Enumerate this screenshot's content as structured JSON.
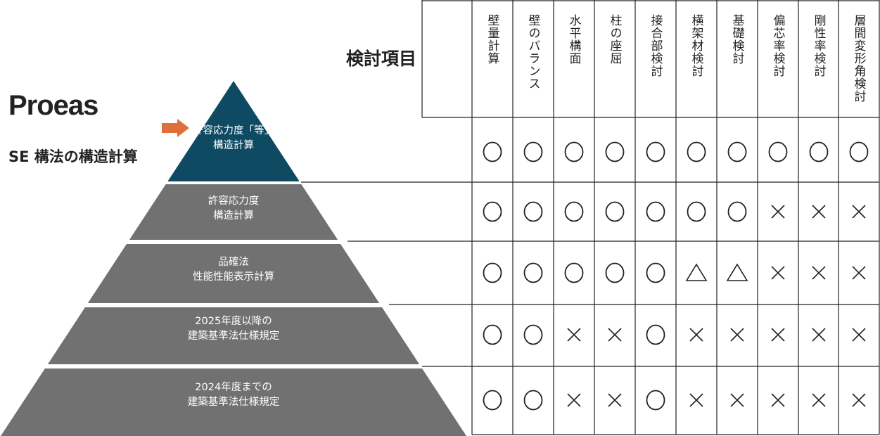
{
  "brand": "Proeas",
  "subtitle": "SE 構法の構造計算",
  "heading": "検討項目",
  "colors": {
    "top_tier": "#0f4a63",
    "tier": "#717171",
    "arrow": "#e0703a",
    "line": "#222222"
  },
  "arrow_icon": "arrow-right-icon",
  "columns": [
    "壁量計算",
    "壁のバランス",
    "水平構面",
    "柱の座屈",
    "接合部検討",
    "横架材検討",
    "基礎検討",
    "偏芯率検討",
    "剛性率検討",
    "層間変形角検討"
  ],
  "rows": [
    {
      "label_lines": [
        "許容応力度「等」",
        "構造計算"
      ],
      "marks": [
        "○",
        "○",
        "○",
        "○",
        "○",
        "○",
        "○",
        "○",
        "○",
        "○"
      ]
    },
    {
      "label_lines": [
        "許容応力度",
        "構造計算"
      ],
      "marks": [
        "○",
        "○",
        "○",
        "○",
        "○",
        "○",
        "○",
        "×",
        "×",
        "×"
      ]
    },
    {
      "label_lines": [
        "品確法",
        "性能性能表示計算"
      ],
      "marks": [
        "○",
        "○",
        "○",
        "○",
        "○",
        "△",
        "△",
        "×",
        "×",
        "×"
      ]
    },
    {
      "label_lines": [
        "2025年度以降の",
        "建築基準法仕様規定"
      ],
      "marks": [
        "○",
        "○",
        "×",
        "×",
        "○",
        "×",
        "×",
        "×",
        "×",
        "×"
      ]
    },
    {
      "label_lines": [
        "2024年度までの",
        "建築基準法仕様規定"
      ],
      "marks": [
        "○",
        "○",
        "×",
        "×",
        "○",
        "×",
        "×",
        "×",
        "×",
        "×"
      ]
    }
  ]
}
